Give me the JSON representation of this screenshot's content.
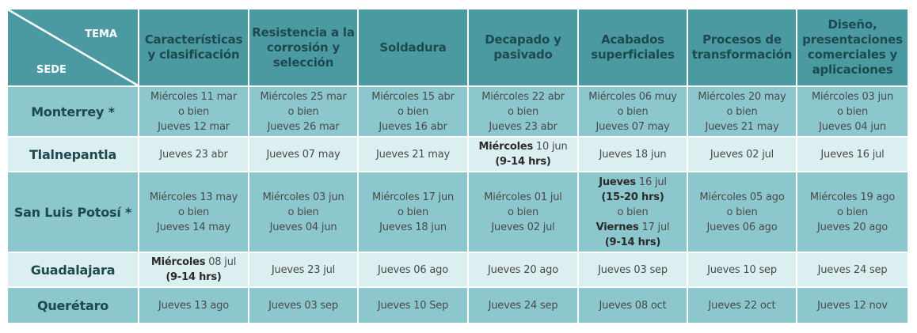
{
  "header": {
    "corner_top": "TEMA",
    "corner_bottom": "SEDE",
    "topics": [
      "Características y clasificación",
      "Resistencia a la corrosión y selección",
      "Soldadura",
      "Decapado y pasivado",
      "Acabados superficiales",
      "Procesos de transformación",
      "Diseño, presentaciones comerciales y aplicaciones"
    ]
  },
  "colors": {
    "header": "#4b9aa1",
    "row_dark": "#8cc7cd",
    "row_light": "#dbeef0",
    "text": "#1d4a4f"
  },
  "rows": [
    {
      "site": "Monterrey *",
      "shade": "dark",
      "cells": [
        [
          {
            "t": "Miércoles 11 mar"
          },
          {
            "t": "o bien"
          },
          {
            "t": "Jueves 12 mar"
          }
        ],
        [
          {
            "t": "Miércoles 25 mar"
          },
          {
            "t": "o bien"
          },
          {
            "t": "Jueves 26 mar"
          }
        ],
        [
          {
            "t": "Miércoles 15 abr"
          },
          {
            "t": "o bien"
          },
          {
            "t": "Jueves 16 abr"
          }
        ],
        [
          {
            "t": "Miércoles 22 abr"
          },
          {
            "t": "o bien"
          },
          {
            "t": "Jueves 23 abr"
          }
        ],
        [
          {
            "t": "Miércoles 06 muy"
          },
          {
            "t": "o bien"
          },
          {
            "t": "Jueves 07 may"
          }
        ],
        [
          {
            "t": "Miércoles 20 may"
          },
          {
            "t": "o bien"
          },
          {
            "t": "Jueves 21 may"
          }
        ],
        [
          {
            "t": "Miércoles 03 jun"
          },
          {
            "t": "o bien"
          },
          {
            "t": "Jueves 04 jun"
          }
        ]
      ]
    },
    {
      "site": "Tlalnepantla",
      "shade": "light",
      "cells": [
        [
          {
            "t": "Jueves 23 abr"
          }
        ],
        [
          {
            "t": "Jueves 07 may"
          }
        ],
        [
          {
            "t": "Jueves 21 may"
          }
        ],
        [
          {
            "b": "Miércoles",
            "t": " 10 jun"
          },
          {
            "b": "(9-14 hrs)"
          }
        ],
        [
          {
            "t": "Jueves 18 jun"
          }
        ],
        [
          {
            "t": "Jueves 02 jul"
          }
        ],
        [
          {
            "t": "Jueves 16 jul"
          }
        ]
      ]
    },
    {
      "site": "San Luis Potosí *",
      "shade": "dark",
      "cells": [
        [
          {
            "t": "Miércoles 13 may"
          },
          {
            "t": "o bien"
          },
          {
            "t": "Jueves 14 may"
          }
        ],
        [
          {
            "t": "Miércoles 03 jun"
          },
          {
            "t": "o bien"
          },
          {
            "t": "Jueves 04 jun"
          }
        ],
        [
          {
            "t": "Miércoles 17 jun"
          },
          {
            "t": "o bien"
          },
          {
            "t": "Jueves 18 jun"
          }
        ],
        [
          {
            "t": "Miércoles 01 jul"
          },
          {
            "t": "o bien"
          },
          {
            "t": "Jueves 02 jul"
          }
        ],
        [
          {
            "b": "Jueves",
            "t": " 16 jul"
          },
          {
            "b": "(15-20 hrs)"
          },
          {
            "t": "o bien"
          },
          {
            "b": "Viernes",
            "t": " 17 jul"
          },
          {
            "b": "(9-14 hrs)"
          }
        ],
        [
          {
            "t": "Miércoles 05 ago"
          },
          {
            "t": "o bien"
          },
          {
            "t": "Jueves 06 ago"
          }
        ],
        [
          {
            "t": "Miércoles 19 ago"
          },
          {
            "t": "o bien"
          },
          {
            "t": "Jueves 20 ago"
          }
        ]
      ]
    },
    {
      "site": "Guadalajara",
      "shade": "light",
      "cells": [
        [
          {
            "b": "Miércoles",
            "t": " 08 jul"
          },
          {
            "b": "(9-14 hrs)"
          }
        ],
        [
          {
            "t": "Jueves 23 jul"
          }
        ],
        [
          {
            "t": "Jueves 06 ago"
          }
        ],
        [
          {
            "t": "Jueves 20 ago"
          }
        ],
        [
          {
            "t": "Jueves 03 sep"
          }
        ],
        [
          {
            "t": "Jueves 10 sep"
          }
        ],
        [
          {
            "t": "Jueves 24 sep"
          }
        ]
      ]
    },
    {
      "site": "Querétaro",
      "shade": "dark",
      "cells": [
        [
          {
            "t": "Jueves 13 ago"
          }
        ],
        [
          {
            "t": "Jueves 03 sep"
          }
        ],
        [
          {
            "t": "Jueves 10 Sep"
          }
        ],
        [
          {
            "t": "Jueves 24 sep"
          }
        ],
        [
          {
            "t": "Jueves 08 oct"
          }
        ],
        [
          {
            "t": "Jueves 22 oct"
          }
        ],
        [
          {
            "t": "Jueves 12 nov"
          }
        ]
      ]
    }
  ]
}
